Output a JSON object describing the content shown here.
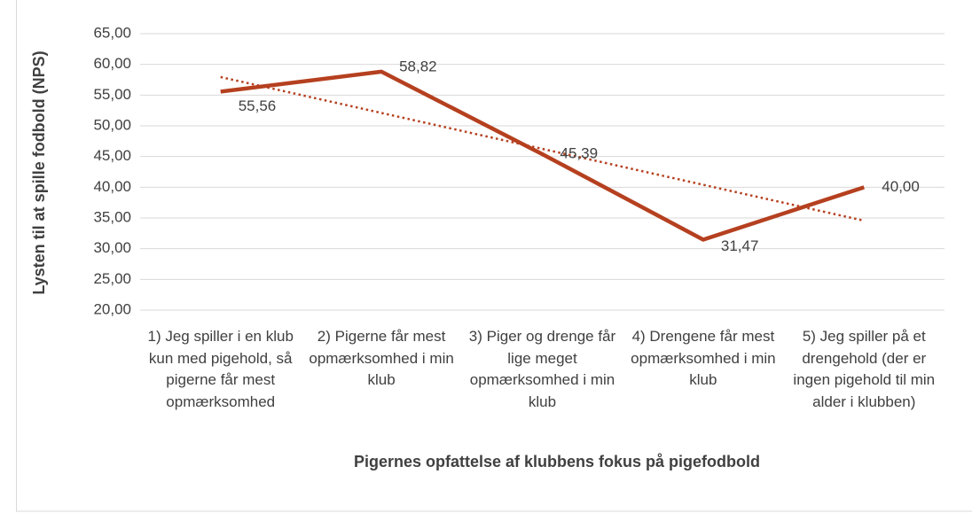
{
  "chart_data": {
    "type": "line",
    "xlabel": "Pigernes opfattelse af klubbens fokus på pigefodbold",
    "ylabel": "Lysten til at spille fodbold (NPS)",
    "categories": [
      "1) Jeg spiller i en klub kun med pigehold, så pigerne får mest opmærksomhed",
      "2) Pigerne får mest opmærksomhed i min klub",
      "3) Piger og drenge får lige meget opmærksomhed i min klub",
      "4) Drengene får mest opmærksomhed i min klub",
      "5) Jeg spiller på et drengehold (der er ingen pigehold til min alder i klubben)"
    ],
    "series": [
      {
        "name": "NPS",
        "color": "#b5401f",
        "values": [
          55.56,
          58.82,
          45.39,
          31.47,
          40.0
        ],
        "value_labels": [
          "55,56",
          "58,82",
          "45,39",
          "31,47",
          "40,00"
        ]
      }
    ],
    "trendline": "linear",
    "ylim": [
      20,
      65
    ],
    "yticks": [
      {
        "value": 20,
        "label": "20,00"
      },
      {
        "value": 25,
        "label": "25,00"
      },
      {
        "value": 30,
        "label": "30,00"
      },
      {
        "value": 35,
        "label": "35,00"
      },
      {
        "value": 40,
        "label": "40,00"
      },
      {
        "value": 45,
        "label": "45,00"
      },
      {
        "value": 50,
        "label": "50,00"
      },
      {
        "value": 55,
        "label": "55,00"
      },
      {
        "value": 60,
        "label": "60,00"
      },
      {
        "value": 65,
        "label": "65,00"
      }
    ],
    "grid": true
  }
}
